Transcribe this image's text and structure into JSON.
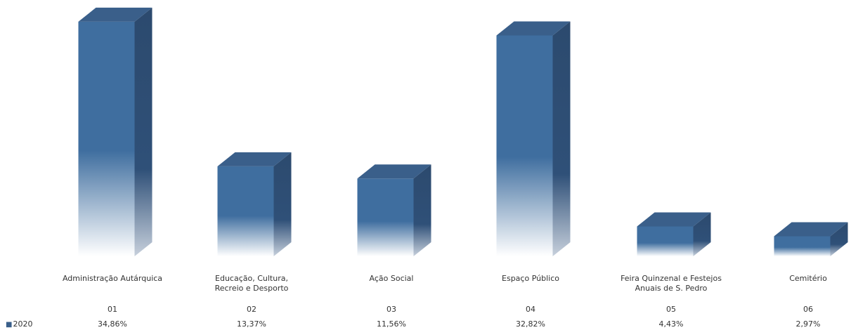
{
  "chart_data": {
    "type": "bar",
    "title": "",
    "xlabel": "",
    "ylabel": "",
    "categories": [
      "Administração Autárquica",
      "Educação, Cultura,\nRecreio e Desporto",
      "Ação Social",
      "Espaço Público",
      "Feira Quinzenal e Festejos\nAnuais de S. Pedro",
      "Cemitério"
    ],
    "codes": [
      "01",
      "02",
      "03",
      "04",
      "05",
      "06"
    ],
    "series": [
      {
        "name": "2020",
        "values": [
          34.86,
          13.37,
          11.56,
          32.82,
          4.43,
          2.97
        ],
        "labels": [
          "34,86%",
          "13,37%",
          "11,56%",
          "32,82%",
          "4,43%",
          "2,97%"
        ]
      }
    ],
    "ylim": [
      0,
      36
    ],
    "grid": false,
    "legend": "bottom-left",
    "colors": {
      "bar_top": "#3a5f8a",
      "bar_front": "#3f6e9f",
      "bar_side": "#2c4a6e",
      "bar_fade": "#ffffff"
    }
  }
}
